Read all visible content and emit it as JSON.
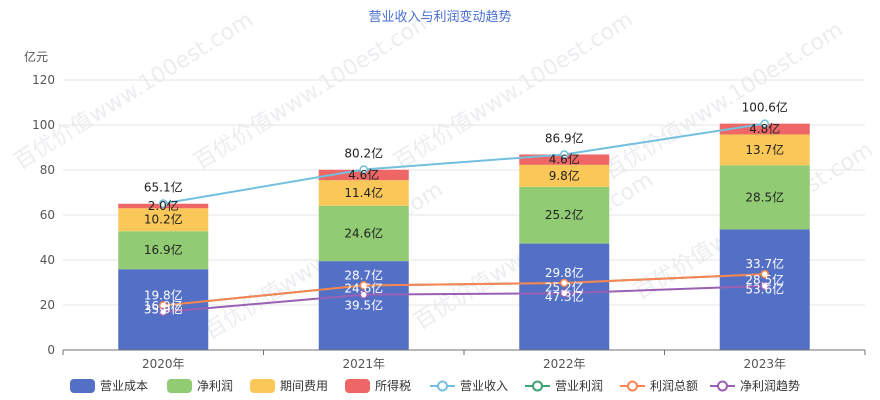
{
  "chart_data": {
    "type": "bar",
    "title": "营业收入与利润变动趋势",
    "ylabel": "亿元",
    "ylim": [
      0,
      120
    ],
    "yticks": [
      0,
      20,
      40,
      60,
      80,
      100,
      120
    ],
    "categories": [
      "2020年",
      "2021年",
      "2022年",
      "2023年"
    ],
    "stack_series": [
      {
        "name": "营业成本",
        "color": "#5470c6",
        "values": [
          35.9,
          39.5,
          47.3,
          53.6
        ],
        "labels": [
          "35.9亿",
          "39.5亿",
          "47.3亿",
          "53.6亿"
        ]
      },
      {
        "name": "净利润",
        "color": "#91cc75",
        "values": [
          16.9,
          24.6,
          25.2,
          28.5
        ],
        "labels": [
          "16.9亿",
          "24.6亿",
          "25.2亿",
          "28.5亿"
        ]
      },
      {
        "name": "期间费用",
        "color": "#fac858",
        "values": [
          10.2,
          11.4,
          9.8,
          13.7
        ],
        "labels": [
          "10.2亿",
          "11.4亿",
          "9.8亿",
          "13.7亿"
        ]
      },
      {
        "name": "所得税",
        "color": "#ee6666",
        "values": [
          2.0,
          4.6,
          4.6,
          4.8
        ],
        "labels": [
          "2.0亿",
          "4.6亿",
          "4.6亿",
          "4.8亿"
        ]
      }
    ],
    "line_series": [
      {
        "name": "营业收入",
        "color": "#73c0de",
        "values": [
          65.1,
          80.2,
          86.9,
          100.6
        ],
        "labels": [
          "65.1亿",
          "80.2亿",
          "86.9亿",
          "100.6亿"
        ]
      },
      {
        "name": "营业利润",
        "color": "#3ba272",
        "values": [
          19.8,
          28.7,
          29.8,
          33.7
        ],
        "labels": [
          "19.8亿",
          "28.7亿",
          "29.8亿",
          "33.7亿"
        ]
      },
      {
        "name": "利润总额",
        "color": "#fc8452",
        "values": [
          19.8,
          28.7,
          29.8,
          33.7
        ],
        "labels": []
      },
      {
        "name": "净利润趋势",
        "color": "#9a60b4",
        "values": [
          16.9,
          24.6,
          25.2,
          28.5
        ],
        "labels": [
          "16.9亿",
          "24.6亿",
          "25.2亿",
          "28.5亿"
        ]
      }
    ],
    "legend_position": "bottom",
    "grid": true
  },
  "watermark": "百优价值www.100est.com"
}
